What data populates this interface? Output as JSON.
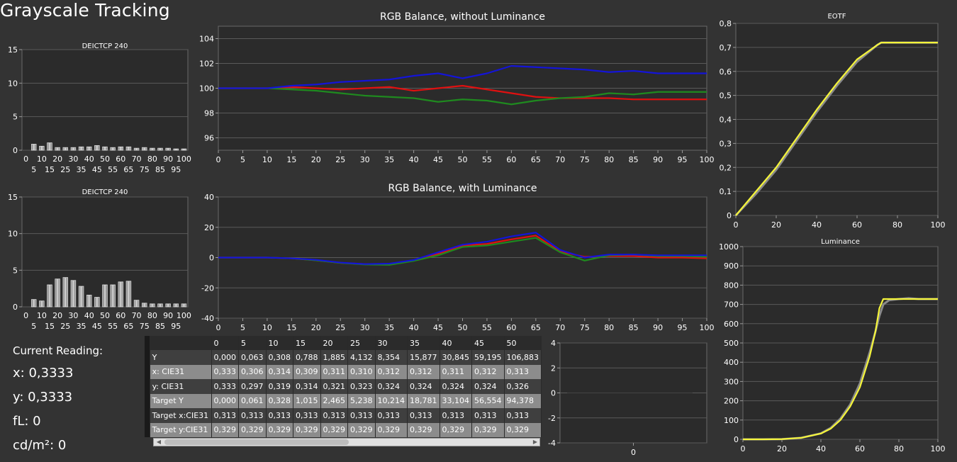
{
  "title": "Grayscale Tracking",
  "readings": {
    "header": "Current Reading:",
    "x": "x: 0,3333",
    "y": "y: 0,3333",
    "fl": "fL: 0",
    "cdm2": "cd/m²: 0"
  },
  "colors": {
    "background": "#333333",
    "plot_bg": "#2b2b2b",
    "red": "#e01010",
    "green": "#1f8a1f",
    "blue": "#1414d8",
    "yellow": "#f5f53a",
    "reference": "#8a8a8a"
  },
  "table": {
    "headers": [
      "",
      "0",
      "5",
      "10",
      "15",
      "20",
      "25",
      "30",
      "35",
      "40",
      "45",
      "50"
    ],
    "rows": [
      [
        "Y",
        "0,000",
        "0,063",
        "0,308",
        "0,788",
        "1,885",
        "4,132",
        "8,354",
        "15,877",
        "30,845",
        "59,195",
        "106,883"
      ],
      [
        "x: CIE31",
        "0,333",
        "0,306",
        "0,314",
        "0,309",
        "0,311",
        "0,310",
        "0,312",
        "0,312",
        "0,311",
        "0,312",
        "0,313"
      ],
      [
        "y: CIE31",
        "0,333",
        "0,297",
        "0,319",
        "0,314",
        "0,321",
        "0,323",
        "0,324",
        "0,324",
        "0,324",
        "0,324",
        "0,326"
      ],
      [
        "Target Y",
        "0,000",
        "0,061",
        "0,328",
        "1,015",
        "2,465",
        "5,238",
        "10,214",
        "18,781",
        "33,104",
        "56,554",
        "94,378"
      ],
      [
        "Target x:CIE31",
        "0,313",
        "0,313",
        "0,313",
        "0,313",
        "0,313",
        "0,313",
        "0,313",
        "0,313",
        "0,313",
        "0,313",
        "0,313"
      ],
      [
        "Target y:CIE31",
        "0,329",
        "0,329",
        "0,329",
        "0,329",
        "0,329",
        "0,329",
        "0,329",
        "0,329",
        "0,329",
        "0,329",
        "0,329"
      ]
    ]
  },
  "chart_data": [
    {
      "id": "deictcp1",
      "type": "bar",
      "title": "DEICTCP 240",
      "categories": [
        0,
        5,
        10,
        15,
        20,
        25,
        30,
        35,
        40,
        45,
        50,
        55,
        60,
        65,
        70,
        75,
        80,
        85,
        90,
        95,
        100
      ],
      "values": [
        0,
        0.9,
        0.6,
        1.1,
        0.4,
        0.4,
        0.4,
        0.5,
        0.5,
        0.7,
        0.5,
        0.4,
        0.5,
        0.5,
        0.3,
        0.4,
        0.3,
        0.3,
        0.3,
        0.2,
        0.2
      ],
      "ylim": [
        0,
        15
      ],
      "yticks": [
        0,
        5,
        10,
        15
      ],
      "xticks_top": [
        "0",
        "10",
        "20",
        "30",
        "40",
        "50",
        "60",
        "70",
        "80",
        "90",
        "100"
      ],
      "xticks_bottom": [
        "5",
        "15",
        "25",
        "35",
        "45",
        "55",
        "65",
        "75",
        "85",
        "95"
      ]
    },
    {
      "id": "rgb1",
      "type": "line",
      "title": "RGB Balance, without Luminance",
      "x": [
        0,
        5,
        10,
        15,
        20,
        25,
        30,
        35,
        40,
        45,
        50,
        55,
        60,
        65,
        70,
        75,
        80,
        85,
        90,
        95,
        100
      ],
      "series": [
        {
          "color": "#e01010",
          "values": [
            100,
            100,
            100,
            100.1,
            100,
            99.9,
            100,
            100.1,
            99.8,
            100,
            100.2,
            99.9,
            99.6,
            99.3,
            99.2,
            99.2,
            99.2,
            99.1,
            99.1,
            99.1,
            99.1
          ]
        },
        {
          "color": "#1f8a1f",
          "values": [
            100,
            100,
            100,
            99.9,
            99.8,
            99.6,
            99.4,
            99.3,
            99.2,
            98.9,
            99.1,
            99,
            98.7,
            99,
            99.2,
            99.3,
            99.6,
            99.5,
            99.7,
            99.7,
            99.7
          ]
        },
        {
          "color": "#1414d8",
          "values": [
            100,
            100,
            100,
            100.2,
            100.3,
            100.5,
            100.6,
            100.7,
            101,
            101.2,
            100.8,
            101.2,
            101.8,
            101.7,
            101.6,
            101.5,
            101.3,
            101.4,
            101.2,
            101.2,
            101.2
          ]
        }
      ],
      "ylim": [
        95,
        105
      ],
      "yticks": [
        96,
        98,
        100,
        102,
        104
      ],
      "xticks": [
        0,
        5,
        10,
        15,
        20,
        25,
        30,
        35,
        40,
        45,
        50,
        55,
        60,
        65,
        70,
        75,
        80,
        85,
        90,
        95,
        100
      ]
    },
    {
      "id": "eotf",
      "type": "line",
      "title": "EOTF",
      "x": [
        0,
        10,
        20,
        30,
        40,
        50,
        60,
        70,
        72,
        80,
        90,
        100
      ],
      "series": [
        {
          "color": "#8a8a8a",
          "values": [
            0,
            0.09,
            0.19,
            0.31,
            0.43,
            0.54,
            0.64,
            0.71,
            0.72,
            0.72,
            0.72,
            0.72
          ]
        },
        {
          "color": "#f5f53a",
          "values": [
            0,
            0.1,
            0.2,
            0.32,
            0.44,
            0.55,
            0.65,
            0.71,
            0.72,
            0.72,
            0.72,
            0.72
          ]
        }
      ],
      "ylim": [
        0,
        0.8
      ],
      "yticks": [
        "0",
        "0,1",
        "0,2",
        "0,3",
        "0,4",
        "0,5",
        "0,6",
        "0,7",
        "0,8"
      ],
      "xticks": [
        0,
        20,
        40,
        60,
        80,
        100
      ]
    },
    {
      "id": "deictcp2",
      "type": "bar",
      "title": "DEICTCP 240",
      "categories": [
        0,
        5,
        10,
        15,
        20,
        25,
        30,
        35,
        40,
        45,
        50,
        55,
        60,
        65,
        70,
        75,
        80,
        85,
        90,
        95,
        100
      ],
      "values": [
        0,
        1,
        0.8,
        3,
        3.8,
        4,
        3.6,
        2.8,
        1.6,
        1.3,
        3,
        3,
        3.4,
        3.5,
        0.9,
        0.5,
        0.4,
        0.4,
        0.4,
        0.4,
        0.4
      ],
      "ylim": [
        0,
        15
      ],
      "yticks": [
        0,
        5,
        10,
        15
      ],
      "xticks_top": [
        "0",
        "10",
        "20",
        "30",
        "40",
        "50",
        "60",
        "70",
        "80",
        "90",
        "100"
      ],
      "xticks_bottom": [
        "5",
        "15",
        "25",
        "35",
        "45",
        "55",
        "65",
        "75",
        "85",
        "95"
      ]
    },
    {
      "id": "rgb2",
      "type": "line",
      "title": "RGB Balance, with Luminance",
      "x": [
        0,
        5,
        10,
        15,
        20,
        25,
        30,
        35,
        40,
        45,
        50,
        55,
        60,
        65,
        70,
        75,
        80,
        85,
        90,
        95,
        100
      ],
      "series": [
        {
          "color": "#e01010",
          "values": [
            0,
            0,
            0,
            -0.5,
            -1.8,
            -3.5,
            -4.3,
            -4.2,
            -2,
            2.5,
            8,
            9,
            12,
            14.5,
            4,
            0.5,
            1,
            1,
            0,
            0,
            -0.5
          ]
        },
        {
          "color": "#1f8a1f",
          "values": [
            0,
            0,
            0,
            -0.5,
            -1.8,
            -3.5,
            -4.6,
            -4.8,
            -2.2,
            1.5,
            7,
            8,
            10.5,
            13,
            3.5,
            -2,
            1.5,
            2,
            1,
            1,
            0.5
          ]
        },
        {
          "color": "#1414d8",
          "values": [
            0,
            0,
            0,
            -0.5,
            -1.5,
            -3.3,
            -4.3,
            -4,
            -1.6,
            3.5,
            8.5,
            10.5,
            14,
            16.5,
            5,
            0,
            2,
            2,
            1.5,
            1.5,
            1.5
          ]
        }
      ],
      "ylim": [
        -40,
        40
      ],
      "yticks": [
        -40,
        -20,
        0,
        20,
        40
      ],
      "xticks": [
        0,
        5,
        10,
        15,
        20,
        25,
        30,
        35,
        40,
        45,
        50,
        55,
        60,
        65,
        70,
        75,
        80,
        85,
        90,
        95,
        100
      ]
    },
    {
      "id": "luminance",
      "type": "line",
      "title": "Luminance",
      "x": [
        0,
        10,
        20,
        30,
        40,
        45,
        50,
        55,
        60,
        65,
        68,
        70,
        72,
        75,
        80,
        85,
        90,
        100
      ],
      "series": [
        {
          "color": "#8a8a8a",
          "values": [
            0,
            0,
            1,
            8,
            31,
            59,
            107,
            180,
            290,
            450,
            560,
            640,
            700,
            722,
            728,
            732,
            728,
            728
          ]
        },
        {
          "color": "#f5f53a",
          "values": [
            0,
            0,
            1,
            8,
            30,
            55,
            100,
            170,
            270,
            430,
            560,
            680,
            728,
            728,
            728,
            728,
            728,
            728
          ]
        }
      ],
      "ylim": [
        0,
        1000
      ],
      "yticks": [
        0,
        100,
        200,
        300,
        400,
        500,
        600,
        700,
        800,
        900,
        1000
      ],
      "xticks": [
        0,
        20,
        40,
        60,
        80,
        100
      ]
    },
    {
      "id": "small",
      "type": "line",
      "title": "",
      "x": [
        0
      ],
      "series": [],
      "ylim": [
        -4,
        4
      ],
      "yticks": [
        -4,
        -2,
        0,
        2,
        4
      ],
      "xticks": [
        0
      ]
    }
  ]
}
